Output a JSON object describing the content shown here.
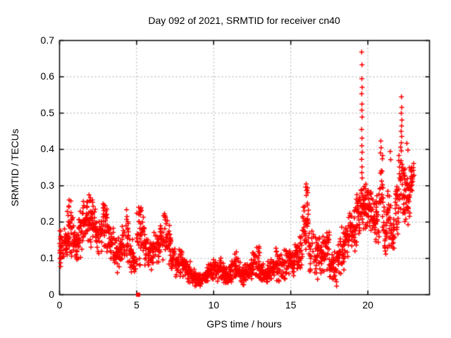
{
  "chart_data": {
    "type": "scatter",
    "title": "Day 092 of 2021, SRMTID for receiver cn40",
    "xlabel": "GPS time / hours",
    "ylabel": "SRMTID / TECUs",
    "xlim": [
      0,
      24
    ],
    "ylim": [
      0,
      0.7
    ],
    "xtick_labels": [
      "0",
      "5",
      "10",
      "15",
      "20"
    ],
    "xtick_values": [
      0,
      5,
      10,
      15,
      20
    ],
    "ytick_labels": [
      "0",
      "0.1",
      "0.2",
      "0.3",
      "0.4",
      "0.5",
      "0.6",
      "0.7"
    ],
    "ytick_values": [
      0,
      0.1,
      0.2,
      0.3,
      0.4,
      0.5,
      0.6,
      0.7
    ],
    "grid": {
      "show": true,
      "style": "dashed",
      "color": "#a8a8a8"
    },
    "axis_color": "#000000",
    "marker": {
      "shape": "plus",
      "color": "#ff0000",
      "size": 7
    },
    "bins_format": "[hour_start, hour_end, y_min_TECUs, y_max_TECUs, point_count]",
    "density_bins": [
      [
        0.0,
        0.25,
        0.07,
        0.21,
        25
      ],
      [
        0.25,
        0.5,
        0.09,
        0.2,
        22
      ],
      [
        0.5,
        0.75,
        0.1,
        0.26,
        22
      ],
      [
        0.75,
        1.0,
        0.1,
        0.22,
        22
      ],
      [
        1.0,
        1.25,
        0.08,
        0.18,
        22
      ],
      [
        1.25,
        1.5,
        0.1,
        0.24,
        22
      ],
      [
        1.5,
        1.75,
        0.12,
        0.29,
        24
      ],
      [
        1.75,
        2.0,
        0.13,
        0.31,
        24
      ],
      [
        2.0,
        2.25,
        0.12,
        0.28,
        24
      ],
      [
        2.25,
        2.5,
        0.1,
        0.25,
        22
      ],
      [
        2.5,
        2.75,
        0.1,
        0.22,
        20
      ],
      [
        2.75,
        3.0,
        0.12,
        0.27,
        20
      ],
      [
        3.0,
        3.25,
        0.1,
        0.26,
        20
      ],
      [
        3.25,
        3.5,
        0.08,
        0.2,
        20
      ],
      [
        3.5,
        3.75,
        0.07,
        0.17,
        20
      ],
      [
        3.75,
        4.0,
        0.06,
        0.16,
        20
      ],
      [
        4.0,
        4.25,
        0.07,
        0.2,
        20
      ],
      [
        4.25,
        4.5,
        0.08,
        0.26,
        20
      ],
      [
        4.5,
        4.75,
        0.05,
        0.16,
        20
      ],
      [
        4.75,
        5.0,
        0.04,
        0.12,
        20
      ],
      [
        5.0,
        5.25,
        0.05,
        0.28,
        22
      ],
      [
        5.25,
        5.5,
        0.08,
        0.3,
        22
      ],
      [
        5.5,
        5.75,
        0.06,
        0.2,
        20
      ],
      [
        5.75,
        6.0,
        0.05,
        0.16,
        20
      ],
      [
        6.0,
        6.25,
        0.06,
        0.18,
        20
      ],
      [
        6.25,
        6.5,
        0.07,
        0.2,
        20
      ],
      [
        6.5,
        6.75,
        0.08,
        0.22,
        20
      ],
      [
        6.75,
        7.0,
        0.08,
        0.24,
        20
      ],
      [
        7.0,
        7.25,
        0.07,
        0.21,
        20
      ],
      [
        7.25,
        7.5,
        0.05,
        0.15,
        20
      ],
      [
        7.5,
        7.75,
        0.04,
        0.13,
        20
      ],
      [
        7.75,
        8.0,
        0.04,
        0.14,
        20
      ],
      [
        8.0,
        8.25,
        0.03,
        0.12,
        20
      ],
      [
        8.25,
        8.5,
        0.03,
        0.1,
        20
      ],
      [
        8.5,
        8.75,
        0.02,
        0.08,
        20
      ],
      [
        8.75,
        9.0,
        0.02,
        0.07,
        20
      ],
      [
        9.0,
        9.25,
        0.02,
        0.06,
        20
      ],
      [
        9.25,
        9.5,
        0.02,
        0.07,
        20
      ],
      [
        9.5,
        9.75,
        0.03,
        0.09,
        20
      ],
      [
        9.75,
        10.0,
        0.03,
        0.1,
        20
      ],
      [
        10.0,
        10.25,
        0.03,
        0.11,
        20
      ],
      [
        10.25,
        10.5,
        0.04,
        0.12,
        20
      ],
      [
        10.5,
        10.75,
        0.03,
        0.09,
        20
      ],
      [
        10.75,
        11.0,
        0.02,
        0.08,
        20
      ],
      [
        11.0,
        11.25,
        0.03,
        0.1,
        20
      ],
      [
        11.25,
        11.5,
        0.04,
        0.13,
        20
      ],
      [
        11.5,
        11.75,
        0.03,
        0.1,
        20
      ],
      [
        11.75,
        12.0,
        0.02,
        0.08,
        20
      ],
      [
        12.0,
        12.25,
        0.03,
        0.09,
        20
      ],
      [
        12.25,
        12.5,
        0.03,
        0.11,
        20
      ],
      [
        12.5,
        12.75,
        0.04,
        0.13,
        20
      ],
      [
        12.75,
        13.0,
        0.03,
        0.15,
        20
      ],
      [
        13.0,
        13.25,
        0.02,
        0.09,
        20
      ],
      [
        13.25,
        13.5,
        0.03,
        0.08,
        20
      ],
      [
        13.5,
        13.75,
        0.03,
        0.1,
        20
      ],
      [
        13.75,
        14.0,
        0.04,
        0.11,
        20
      ],
      [
        14.0,
        14.25,
        0.03,
        0.14,
        20
      ],
      [
        14.25,
        14.5,
        0.04,
        0.12,
        20
      ],
      [
        14.5,
        14.75,
        0.04,
        0.13,
        20
      ],
      [
        14.75,
        15.0,
        0.05,
        0.14,
        20
      ],
      [
        15.0,
        15.25,
        0.05,
        0.13,
        20
      ],
      [
        15.25,
        15.5,
        0.06,
        0.15,
        20
      ],
      [
        15.5,
        15.75,
        0.07,
        0.18,
        20
      ],
      [
        15.75,
        16.0,
        0.1,
        0.28,
        22
      ],
      [
        16.0,
        16.15,
        0.12,
        0.31,
        16
      ],
      [
        16.15,
        16.5,
        0.06,
        0.2,
        20
      ],
      [
        16.5,
        16.75,
        0.04,
        0.16,
        20
      ],
      [
        16.75,
        17.0,
        0.05,
        0.18,
        20
      ],
      [
        17.0,
        17.25,
        0.06,
        0.18,
        20
      ],
      [
        17.25,
        17.5,
        0.05,
        0.2,
        20
      ],
      [
        17.5,
        17.75,
        0.03,
        0.13,
        20
      ],
      [
        17.75,
        18.0,
        0.02,
        0.12,
        20
      ],
      [
        18.0,
        18.25,
        0.04,
        0.16,
        20
      ],
      [
        18.25,
        18.5,
        0.06,
        0.19,
        20
      ],
      [
        18.5,
        18.75,
        0.1,
        0.22,
        20
      ],
      [
        18.75,
        19.0,
        0.11,
        0.25,
        20
      ],
      [
        19.0,
        19.25,
        0.12,
        0.26,
        20
      ],
      [
        19.25,
        19.5,
        0.14,
        0.3,
        24
      ],
      [
        19.5,
        19.75,
        0.16,
        0.33,
        26
      ],
      [
        19.75,
        20.0,
        0.17,
        0.31,
        24
      ],
      [
        20.0,
        20.25,
        0.16,
        0.3,
        24
      ],
      [
        20.25,
        20.5,
        0.13,
        0.27,
        22
      ],
      [
        20.5,
        20.75,
        0.12,
        0.3,
        22
      ],
      [
        20.75,
        21.0,
        0.13,
        0.4,
        22
      ],
      [
        21.0,
        21.25,
        0.1,
        0.25,
        22
      ],
      [
        21.25,
        21.5,
        0.12,
        0.3,
        22
      ],
      [
        21.5,
        21.75,
        0.1,
        0.24,
        20
      ],
      [
        21.75,
        22.0,
        0.15,
        0.32,
        22
      ],
      [
        22.0,
        22.25,
        0.2,
        0.45,
        24
      ],
      [
        22.25,
        22.5,
        0.17,
        0.38,
        24
      ],
      [
        22.5,
        22.75,
        0.15,
        0.37,
        26
      ],
      [
        22.75,
        23.0,
        0.28,
        0.37,
        22
      ]
    ],
    "outlier_points": [
      [
        19.6,
        0.668
      ],
      [
        19.62,
        0.633
      ],
      [
        19.61,
        0.595
      ],
      [
        19.63,
        0.571
      ],
      [
        19.6,
        0.553
      ],
      [
        19.62,
        0.525
      ],
      [
        19.61,
        0.508
      ],
      [
        19.63,
        0.489
      ],
      [
        19.6,
        0.455
      ],
      [
        19.62,
        0.431
      ],
      [
        19.61,
        0.41
      ],
      [
        19.63,
        0.392
      ],
      [
        19.6,
        0.373
      ],
      [
        19.62,
        0.352
      ],
      [
        19.61,
        0.336
      ],
      [
        22.18,
        0.545
      ],
      [
        22.2,
        0.516
      ],
      [
        22.17,
        0.5
      ],
      [
        22.21,
        0.481
      ],
      [
        22.19,
        0.465
      ],
      [
        22.16,
        0.45
      ],
      [
        22.2,
        0.436
      ],
      [
        20.84,
        0.423
      ],
      [
        20.86,
        0.405
      ],
      [
        20.82,
        0.39
      ],
      [
        21.45,
        0.394
      ],
      [
        21.48,
        0.372
      ],
      [
        22.53,
        0.417
      ],
      [
        22.6,
        0.398
      ],
      [
        16.0,
        0.305
      ],
      [
        15.97,
        0.296
      ],
      [
        16.03,
        0.287
      ],
      [
        0.62,
        0.261
      ],
      [
        0.73,
        0.258
      ]
    ],
    "zero_outlier": {
      "x": 5.1,
      "y": 0.0,
      "marker": "filled-square"
    }
  }
}
